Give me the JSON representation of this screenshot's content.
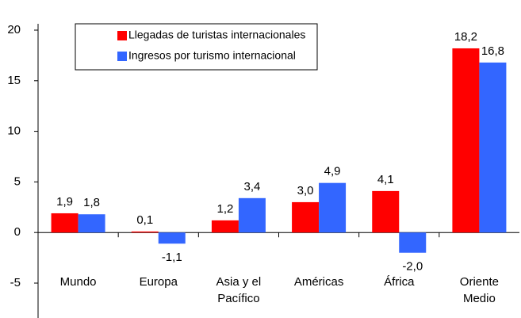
{
  "chart_data": {
    "type": "bar",
    "categories": [
      "Mundo",
      "Europa",
      "Asia y el Pacífico",
      "Américas",
      "África",
      "Oriente Medio"
    ],
    "series": [
      {
        "name": "Llegadas de turistas internacionales",
        "color": "#ff0000",
        "values": [
          1.9,
          0.1,
          1.2,
          3.0,
          4.1,
          18.2
        ],
        "value_labels": [
          "1,9",
          "0,1",
          "1,2",
          "3,0",
          "4,1",
          "18,2"
        ]
      },
      {
        "name": "Ingresos por turismo internacional",
        "color": "#3366ff",
        "values": [
          1.8,
          -1.1,
          3.4,
          4.9,
          -2.0,
          16.8
        ],
        "value_labels": [
          "1,8",
          "-1,1",
          "3,4",
          "4,9",
          "-2,0",
          "16,8"
        ]
      }
    ],
    "ylim": [
      -5,
      20
    ],
    "yticks": [
      -5,
      0,
      5,
      10,
      15,
      20
    ],
    "grid": false
  }
}
